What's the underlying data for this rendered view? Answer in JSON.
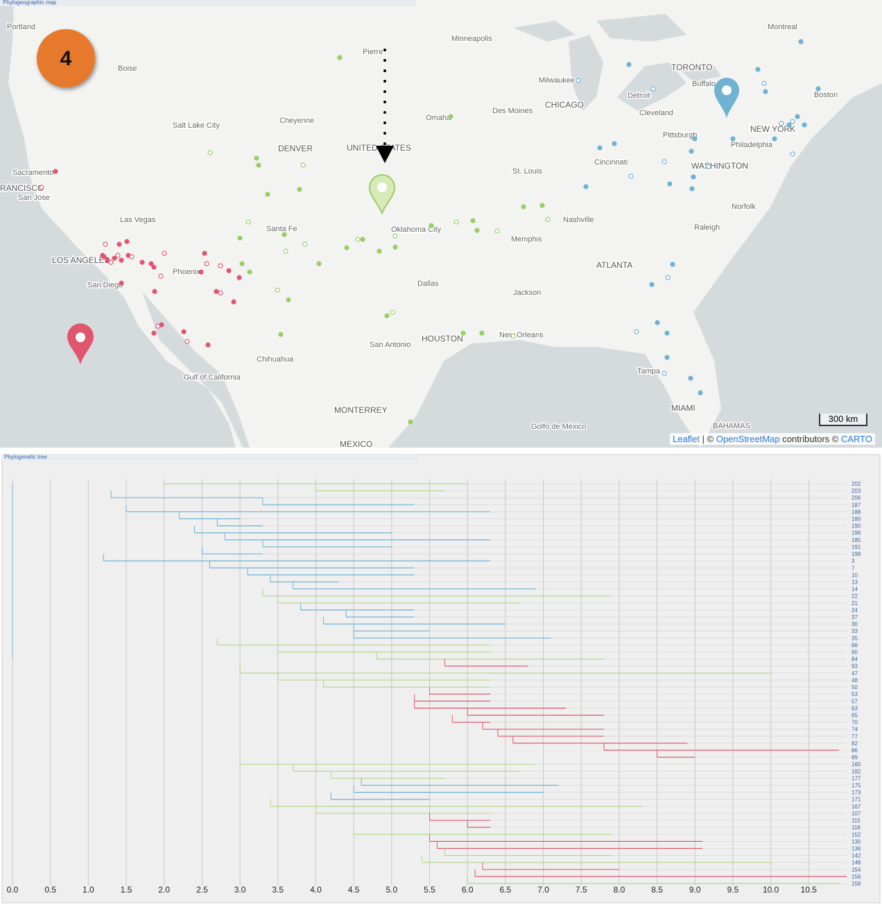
{
  "map_panel": {
    "title": "Phylogeographic map",
    "badge": "4",
    "scale": "300 km",
    "attribution": [
      "Leaflet",
      " | © ",
      "OpenStreetMap",
      " contributors © ",
      "CARTO"
    ],
    "places": [
      "Portland",
      "Boise",
      "Salt Lake City",
      "Sacramento",
      "RANCISCO",
      "San Jose",
      "Las Vegas",
      "LOS ANGELES",
      "San Diego",
      "Phoenix",
      "Cheyenne",
      "DENVER",
      "Santa Fe",
      "Pierre",
      "Minneapolis",
      "Omaha",
      "Des Moines",
      "UNITED STATES",
      "Oklahoma City",
      "Dallas",
      "San Antonio",
      "HOUSTON",
      "Chihuahua",
      "MONTERREY",
      "MEXICO",
      "New Orleans",
      "Jackson",
      "Memphis",
      "Nashville",
      "St. Louis",
      "CHICAGO",
      "Milwaukee",
      "Detroit",
      "TORONTO",
      "Buffalo",
      "Cleveland",
      "Pittsburgh",
      "Cincinnati",
      "WASHINGTON",
      "Philadelphia",
      "NEW YORK",
      "Boston",
      "Montreal",
      "Norfolk",
      "Raleigh",
      "ATLANTA",
      "Tampa",
      "MIAMI",
      "Gulf of California",
      "Golfo de México",
      "BAHAMAS"
    ]
  },
  "tree_panel": {
    "title": "Phylogenetic tree",
    "xlim": [
      0,
      11
    ],
    "xticks": [
      {
        "value": 0,
        "label": "0.0"
      },
      {
        "value": 0.5,
        "label": "0.5"
      },
      {
        "value": 1,
        "label": "1.0"
      },
      {
        "value": 1.5,
        "label": "1.5"
      },
      {
        "value": 2,
        "label": "2.0"
      },
      {
        "value": 2.5,
        "label": "2.5"
      },
      {
        "value": 3,
        "label": "3.0"
      },
      {
        "value": 3.5,
        "label": "3.5"
      },
      {
        "value": 4,
        "label": "4.0"
      },
      {
        "value": 4.5,
        "label": "4.5"
      },
      {
        "value": 5,
        "label": "5.0"
      },
      {
        "value": 5.5,
        "label": "5.5"
      },
      {
        "value": 6,
        "label": "6.0"
      },
      {
        "value": 6.5,
        "label": "6.5"
      },
      {
        "value": 7,
        "label": "7.0"
      },
      {
        "value": 7.5,
        "label": "7.5"
      },
      {
        "value": 8,
        "label": "8.0"
      },
      {
        "value": 8.5,
        "label": "8.5"
      },
      {
        "value": 9,
        "label": "9.0"
      },
      {
        "value": 9.5,
        "label": "9.5"
      },
      {
        "value": 10,
        "label": "10.0"
      },
      {
        "value": 10.5,
        "label": "10.5"
      }
    ],
    "leaves": [
      {
        "label": "202",
        "start": 2.0,
        "end": 6.0,
        "color": "#b3d68a"
      },
      {
        "label": "203",
        "start": 4.0,
        "end": 5.7,
        "color": "#b3d68a"
      },
      {
        "label": "206",
        "start": 1.3,
        "end": 3.3,
        "color": "#6fb2d2"
      },
      {
        "label": "187",
        "start": 3.3,
        "end": 5.3,
        "color": "#6fb2d2"
      },
      {
        "label": "188",
        "start": 1.5,
        "end": 6.3,
        "color": "#6fb2d2"
      },
      {
        "label": "180",
        "start": 2.2,
        "end": 3.0,
        "color": "#6fb2d2"
      },
      {
        "label": "190",
        "start": 2.7,
        "end": 3.3,
        "color": "#6fb2d2"
      },
      {
        "label": "196",
        "start": 2.4,
        "end": 5.0,
        "color": "#6fb2d2"
      },
      {
        "label": "185",
        "start": 2.8,
        "end": 6.3,
        "color": "#6fb2d2"
      },
      {
        "label": "191",
        "start": 3.3,
        "end": 5.0,
        "color": "#6fb2d2"
      },
      {
        "label": "198",
        "start": 2.5,
        "end": 3.3,
        "color": "#6fb2d2"
      },
      {
        "label": "3",
        "start": 1.2,
        "end": 6.3,
        "color": "#6fb2d2"
      },
      {
        "label": "7",
        "start": 2.6,
        "end": 5.3,
        "color": "#6fb2d2"
      },
      {
        "label": "10",
        "start": 3.1,
        "end": 5.3,
        "color": "#6fb2d2"
      },
      {
        "label": "13",
        "start": 3.4,
        "end": 4.3,
        "color": "#6fb2d2"
      },
      {
        "label": "14",
        "start": 3.7,
        "end": 6.9,
        "color": "#6fb2d2"
      },
      {
        "label": "22",
        "start": 3.3,
        "end": 7.9,
        "color": "#b3d68a"
      },
      {
        "label": "21",
        "start": 3.5,
        "end": 6.7,
        "color": "#b3d68a"
      },
      {
        "label": "24",
        "start": 3.8,
        "end": 5.3,
        "color": "#6fb2d2"
      },
      {
        "label": "37",
        "start": 4.4,
        "end": 5.3,
        "color": "#6fb2d2"
      },
      {
        "label": "30",
        "start": 4.1,
        "end": 6.5,
        "color": "#6fb2d2"
      },
      {
        "label": "33",
        "start": 4.5,
        "end": 5.5,
        "color": "#6fb2d2"
      },
      {
        "label": "35",
        "start": 4.5,
        "end": 7.1,
        "color": "#6fb2d2"
      },
      {
        "label": "88",
        "start": 2.7,
        "end": 6.3,
        "color": "#b3d68a"
      },
      {
        "label": "90",
        "start": 3.5,
        "end": 6.3,
        "color": "#b3d68a"
      },
      {
        "label": "84",
        "start": 4.8,
        "end": 7.8,
        "color": "#b3d68a"
      },
      {
        "label": "93",
        "start": 5.7,
        "end": 6.8,
        "color": "#e0566f"
      },
      {
        "label": "47",
        "start": 3.0,
        "end": 10.0,
        "color": "#b3d68a"
      },
      {
        "label": "48",
        "start": 3.5,
        "end": 6.3,
        "color": "#b3d68a"
      },
      {
        "label": "50",
        "start": 4.1,
        "end": 6.3,
        "color": "#b3d68a"
      },
      {
        "label": "53",
        "start": 5.5,
        "end": 6.3,
        "color": "#e0566f"
      },
      {
        "label": "57",
        "start": 5.3,
        "end": 6.3,
        "color": "#e0566f"
      },
      {
        "label": "63",
        "start": 5.3,
        "end": 7.3,
        "color": "#e0566f"
      },
      {
        "label": "65",
        "start": 6.0,
        "end": 7.8,
        "color": "#e0566f"
      },
      {
        "label": "70",
        "start": 5.8,
        "end": 6.3,
        "color": "#e0566f"
      },
      {
        "label": "74",
        "start": 6.2,
        "end": 7.8,
        "color": "#e0566f"
      },
      {
        "label": "77",
        "start": 6.4,
        "end": 7.8,
        "color": "#e0566f"
      },
      {
        "label": "82",
        "start": 6.6,
        "end": 8.9,
        "color": "#e0566f"
      },
      {
        "label": "86",
        "start": 7.8,
        "end": 10.9,
        "color": "#e0566f"
      },
      {
        "label": "89",
        "start": 8.5,
        "end": 9.0,
        "color": "#e0566f"
      },
      {
        "label": "160",
        "start": 3.0,
        "end": 6.9,
        "color": "#b3d68a"
      },
      {
        "label": "182",
        "start": 3.7,
        "end": 6.7,
        "color": "#b3d68a"
      },
      {
        "label": "177",
        "start": 4.2,
        "end": 5.7,
        "color": "#b3d68a"
      },
      {
        "label": "175",
        "start": 4.6,
        "end": 7.2,
        "color": "#6fb2d2"
      },
      {
        "label": "173",
        "start": 4.5,
        "end": 7.0,
        "color": "#6fb2d2"
      },
      {
        "label": "171",
        "start": 4.2,
        "end": 5.5,
        "color": "#6fb2d2"
      },
      {
        "label": "167",
        "start": 3.4,
        "end": 8.3,
        "color": "#b3d68a"
      },
      {
        "label": "107",
        "start": 4.0,
        "end": 6.3,
        "color": "#b3d68a"
      },
      {
        "label": "115",
        "start": 5.5,
        "end": 6.3,
        "color": "#e0566f"
      },
      {
        "label": "118",
        "start": 6.0,
        "end": 6.3,
        "color": "#e0566f"
      },
      {
        "label": "152",
        "start": 4.5,
        "end": 7.9,
        "color": "#b3d68a"
      },
      {
        "label": "130",
        "start": 5.5,
        "end": 9.1,
        "color": "#e0566f"
      },
      {
        "label": "136",
        "start": 5.6,
        "end": 9.1,
        "color": "#e0566f"
      },
      {
        "label": "142",
        "start": 5.7,
        "end": 7.9,
        "color": "#b3d68a"
      },
      {
        "label": "148",
        "start": 5.4,
        "end": 10.0,
        "color": "#b3d68a"
      },
      {
        "label": "154",
        "start": 6.2,
        "end": 8.0,
        "color": "#e0566f"
      },
      {
        "label": "156",
        "start": 6.1,
        "end": 11.0,
        "color": "#e0566f"
      },
      {
        "label": "158",
        "start": 6.0,
        "end": 10.9,
        "color": "#b3d68a"
      }
    ]
  }
}
